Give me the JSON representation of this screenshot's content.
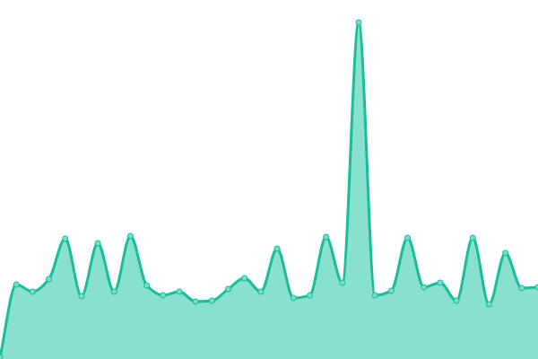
{
  "chart_data": {
    "type": "area",
    "title": "",
    "xlabel": "",
    "ylabel": "",
    "grid": false,
    "axes_visible": false,
    "smooth": true,
    "x": [
      0,
      1,
      2,
      3,
      4,
      5,
      6,
      7,
      8,
      9,
      10,
      11,
      12,
      13,
      14,
      15,
      16,
      17,
      18,
      19,
      20,
      21,
      22,
      23,
      24,
      25,
      26,
      27,
      28,
      29,
      30,
      31,
      32,
      33
    ],
    "values": [
      2,
      83,
      75,
      89,
      134,
      70,
      129,
      75,
      137,
      82,
      71,
      75,
      64,
      65,
      78,
      90,
      75,
      123,
      68,
      71,
      136,
      85,
      375,
      71,
      76,
      135,
      80,
      85,
      65,
      135,
      61,
      118,
      79,
      80
    ],
    "xlim": [
      0,
      33
    ],
    "ylim": [
      0,
      400
    ],
    "colors": {
      "line": "#1abc9c",
      "fill": "#88e0ce",
      "point": "#7ddbc6"
    }
  }
}
